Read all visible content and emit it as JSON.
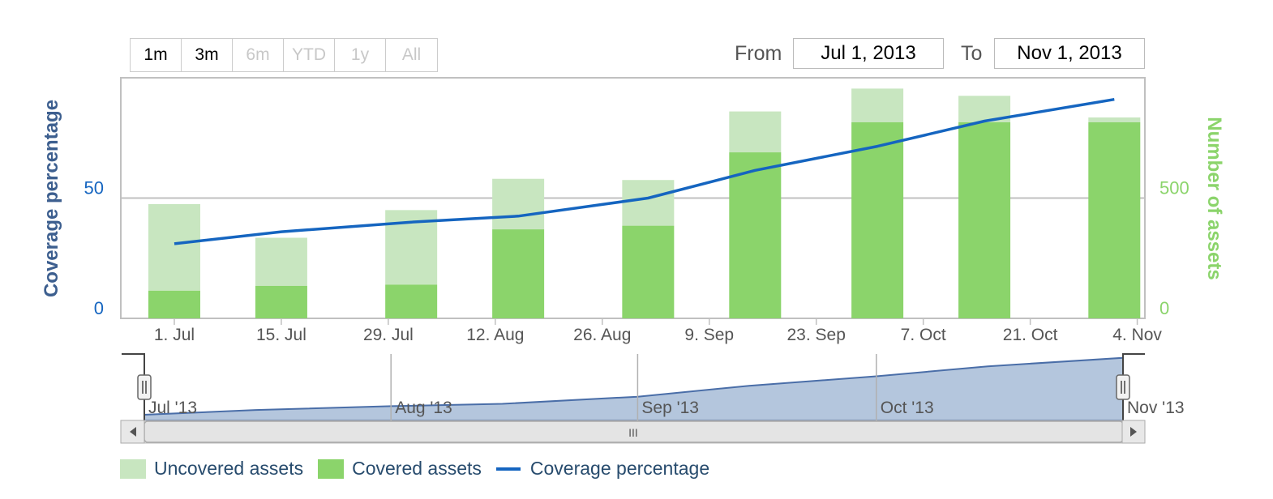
{
  "range_selector": {
    "buttons": [
      {
        "label": "1m",
        "enabled": true
      },
      {
        "label": "3m",
        "enabled": true
      },
      {
        "label": "6m",
        "enabled": false
      },
      {
        "label": "YTD",
        "enabled": false
      },
      {
        "label": "1y",
        "enabled": false
      },
      {
        "label": "All",
        "enabled": false
      }
    ],
    "from_label": "From",
    "from_value": "Jul 1, 2013",
    "to_label": "To",
    "to_value": "Nov 1, 2013"
  },
  "navigator": {
    "labels": [
      "Jul '13",
      "Aug '13",
      "Sep '13",
      "Oct '13",
      "Nov '13"
    ],
    "handle_glyph": "||",
    "scroll_grip": "III",
    "left_arrow": "◀",
    "right_arrow": "▶"
  },
  "colors": {
    "uncovered": "#c8e6c0",
    "covered": "#8bd46b",
    "line": "#1565c0",
    "left_axis": "#3d5f8f",
    "right_axis": "#8bd46b",
    "navigator_fill": "#b4c6dd",
    "navigator_line": "#4a6ea8"
  },
  "chart_data": {
    "type": "bar",
    "x_ticks": [
      "1. Jul",
      "15. Jul",
      "29. Jul",
      "12. Aug",
      "26. Aug",
      "9. Sep",
      "23. Sep",
      "7. Oct",
      "21. Oct",
      "4. Nov"
    ],
    "bars_x": [
      "2013-07-01",
      "2013-07-15",
      "2013-08-01",
      "2013-08-15",
      "2013-09-01",
      "2013-09-15",
      "2013-10-01",
      "2013-10-15",
      "2013-11-01"
    ],
    "series": [
      {
        "name": "Uncovered assets",
        "axis": "right",
        "type": "column",
        "stacked": true,
        "values": [
          360,
          200,
          310,
          210,
          190,
          170,
          140,
          110,
          20
        ]
      },
      {
        "name": "Covered assets",
        "axis": "right",
        "type": "column",
        "stacked": true,
        "values": [
          115,
          135,
          140,
          370,
          385,
          690,
          815,
          815,
          815
        ]
      },
      {
        "name": "Coverage percentage",
        "axis": "left",
        "type": "line",
        "x": [
          "2013-07-01",
          "2013-07-15",
          "2013-08-01",
          "2013-08-15",
          "2013-09-01",
          "2013-09-15",
          "2013-10-01",
          "2013-10-15",
          "2013-11-01"
        ],
        "values": [
          31,
          36,
          40,
          42.5,
          50,
          61.5,
          71.5,
          82,
          91
        ]
      }
    ],
    "left_axis": {
      "title": "Coverage percentage",
      "ticks": [
        0,
        50
      ],
      "range": [
        0,
        100
      ]
    },
    "right_axis": {
      "title": "Number of assets",
      "ticks": [
        0,
        500
      ],
      "range": [
        0,
        1000
      ]
    },
    "x_range": [
      "2013-06-24",
      "2013-11-05"
    ],
    "grid": true,
    "legend_position": "bottom-left"
  }
}
